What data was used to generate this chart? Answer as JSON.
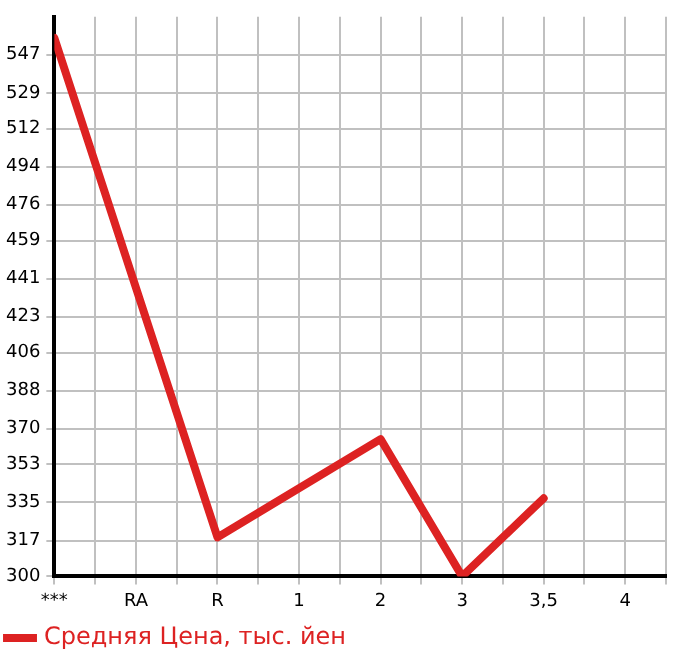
{
  "chart_data": {
    "type": "line",
    "categories": [
      "***",
      "RA",
      "R",
      "1",
      "2",
      "3",
      "3,5",
      "4"
    ],
    "series": [
      {
        "name": "Средняя Цена, тыс. йен",
        "color": "#dd2222",
        "values": [
          555,
          null,
          318.5,
          null,
          365,
          300,
          337,
          null
        ]
      }
    ],
    "ylim": [
      300,
      565
    ],
    "yticks": [
      300,
      317,
      335,
      353,
      370,
      388,
      406,
      423,
      441,
      459,
      476,
      494,
      512,
      529,
      547
    ],
    "grid": true,
    "legend": "bottom left",
    "marker": "none",
    "line_style": "solid"
  }
}
